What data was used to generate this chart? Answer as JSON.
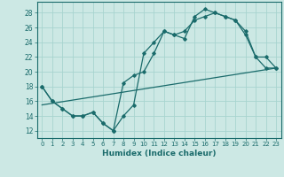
{
  "xlabel": "Humidex (Indice chaleur)",
  "bg_color": "#cce8e4",
  "grid_color": "#a8d4cf",
  "line_color": "#1a6b6b",
  "x_ticks": [
    0,
    1,
    2,
    3,
    4,
    5,
    6,
    7,
    8,
    9,
    10,
    11,
    12,
    13,
    14,
    15,
    16,
    17,
    18,
    19,
    20,
    21,
    22,
    23
  ],
  "y_ticks": [
    12,
    14,
    16,
    18,
    20,
    22,
    24,
    26,
    28
  ],
  "xlim": [
    -0.5,
    23.5
  ],
  "ylim": [
    11.0,
    29.5
  ],
  "line1_x": [
    0,
    1,
    2,
    3,
    4,
    5,
    6,
    7,
    8,
    9,
    10,
    11,
    12,
    13,
    14,
    15,
    16,
    17,
    18,
    19,
    20,
    21,
    22,
    23
  ],
  "line1_y": [
    18,
    16,
    15,
    14,
    14,
    14.5,
    13,
    12,
    14,
    15.5,
    22.5,
    24,
    25.5,
    25,
    24.5,
    27.5,
    28.5,
    28,
    27.5,
    27,
    25.5,
    22,
    20.5,
    20.5
  ],
  "line2_x": [
    0,
    1,
    2,
    3,
    4,
    5,
    6,
    7,
    8,
    9,
    10,
    11,
    12,
    13,
    14,
    15,
    16,
    17,
    18,
    19,
    20,
    21,
    22,
    23
  ],
  "line2_y": [
    18,
    16,
    15,
    14,
    14,
    14.5,
    13,
    12,
    18.5,
    19.5,
    20,
    22.5,
    25.5,
    25,
    25.5,
    27.0,
    27.5,
    28,
    27.5,
    27,
    25.0,
    22,
    22,
    20.5
  ],
  "trend_x": [
    0,
    23
  ],
  "trend_y": [
    15.5,
    20.5
  ]
}
